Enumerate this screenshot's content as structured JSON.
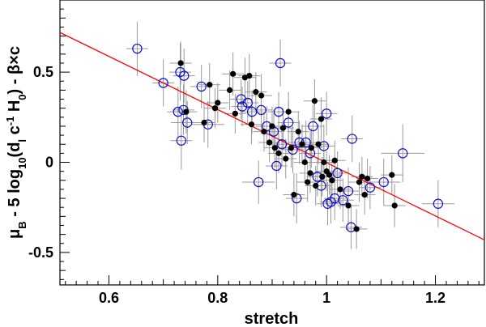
{
  "chart_data": {
    "type": "scatter",
    "xlabel": "stretch",
    "ylabel": "μB - 5 log10(dl c-1 H0) - β×c",
    "ylabel_parts": {
      "mu": "μ",
      "sub_b": "B",
      "mid": " - 5 log",
      "sub_10": "10",
      "open": "(d",
      "sub_l": "l",
      "c": " c",
      "sup_neg1": "-1",
      "h": " H",
      "sub_0": "0",
      "tail": ") - β×c"
    },
    "xlim": [
      0.51,
      1.29
    ],
    "ylim": [
      -0.68,
      0.9
    ],
    "xticks": [
      0.6,
      0.8,
      1.0,
      1.2
    ],
    "xtick_labels": [
      "0.6",
      "0.8",
      "1",
      "1.2"
    ],
    "yticks": [
      -0.5,
      0,
      0.5
    ],
    "ytick_labels": [
      "-0.5",
      "0",
      "0.5"
    ],
    "grid": false,
    "colors": {
      "open_marker": "#1010d0",
      "filled_marker": "#000000",
      "error_bar": "#999999",
      "fit_line": "#ff0000"
    },
    "fit_line": {
      "x": [
        0.51,
        1.29
      ],
      "y": [
        0.72,
        -0.43
      ]
    },
    "series": [
      {
        "marker": "open-circle",
        "points": [
          {
            "x": 0.652,
            "y": 0.63,
            "ex": 0.02,
            "ey": 0.15
          },
          {
            "x": 0.7,
            "y": 0.44,
            "ex": 0.02,
            "ey": 0.13
          },
          {
            "x": 0.727,
            "y": 0.28,
            "ex": 0.02,
            "ey": 0.14
          },
          {
            "x": 0.731,
            "y": 0.5,
            "ex": 0.02,
            "ey": 0.16
          },
          {
            "x": 0.737,
            "y": 0.29,
            "ex": 0.02,
            "ey": 0.14
          },
          {
            "x": 0.738,
            "y": 0.48,
            "ex": 0.02,
            "ey": 0.15
          },
          {
            "x": 0.733,
            "y": 0.12,
            "ex": 0.02,
            "ey": 0.16
          },
          {
            "x": 0.744,
            "y": 0.22,
            "ex": 0.03,
            "ey": 0.12
          },
          {
            "x": 0.77,
            "y": 0.42,
            "ex": 0.02,
            "ey": 0.12
          },
          {
            "x": 0.782,
            "y": 0.21,
            "ex": 0.03,
            "ey": 0.13
          },
          {
            "x": 0.843,
            "y": 0.35,
            "ex": 0.02,
            "ey": 0.11
          },
          {
            "x": 0.845,
            "y": 0.31,
            "ex": 0.02,
            "ey": 0.11
          },
          {
            "x": 0.855,
            "y": 0.33,
            "ex": 0.02,
            "ey": 0.12
          },
          {
            "x": 0.863,
            "y": 0.28,
            "ex": 0.02,
            "ey": 0.12
          },
          {
            "x": 0.875,
            "y": -0.11,
            "ex": 0.03,
            "ey": 0.12
          },
          {
            "x": 0.88,
            "y": 0.29,
            "ex": 0.02,
            "ey": 0.13
          },
          {
            "x": 0.89,
            "y": 0.2,
            "ex": 0.02,
            "ey": 0.11
          },
          {
            "x": 0.903,
            "y": 0.17,
            "ex": 0.02,
            "ey": 0.12
          },
          {
            "x": 0.908,
            "y": -0.02,
            "ex": 0.02,
            "ey": 0.13
          },
          {
            "x": 0.912,
            "y": 0.28,
            "ex": 0.02,
            "ey": 0.11
          },
          {
            "x": 0.915,
            "y": 0.55,
            "ex": 0.02,
            "ey": 0.13
          },
          {
            "x": 0.918,
            "y": 0.1,
            "ex": 0.02,
            "ey": 0.12
          },
          {
            "x": 0.93,
            "y": 0.22,
            "ex": 0.02,
            "ey": 0.12
          },
          {
            "x": 0.938,
            "y": 0.07,
            "ex": 0.02,
            "ey": 0.13
          },
          {
            "x": 0.945,
            "y": -0.2,
            "ex": 0.02,
            "ey": 0.14
          },
          {
            "x": 0.95,
            "y": 0.11,
            "ex": 0.02,
            "ey": 0.12
          },
          {
            "x": 0.962,
            "y": 0.11,
            "ex": 0.02,
            "ey": 0.12
          },
          {
            "x": 0.97,
            "y": 0.05,
            "ex": 0.02,
            "ey": 0.12
          },
          {
            "x": 0.975,
            "y": 0.2,
            "ex": 0.02,
            "ey": 0.12
          },
          {
            "x": 0.983,
            "y": -0.08,
            "ex": 0.02,
            "ey": 0.11
          },
          {
            "x": 0.99,
            "y": -0.13,
            "ex": 0.02,
            "ey": 0.12
          },
          {
            "x": 0.995,
            "y": 0.09,
            "ex": 0.02,
            "ey": 0.12
          },
          {
            "x": 1.0,
            "y": 0.27,
            "ex": 0.02,
            "ey": 0.12
          },
          {
            "x": 1.002,
            "y": -0.23,
            "ex": 0.02,
            "ey": 0.12
          },
          {
            "x": 1.008,
            "y": -0.22,
            "ex": 0.02,
            "ey": 0.12
          },
          {
            "x": 1.015,
            "y": -0.2,
            "ex": 0.02,
            "ey": 0.12
          },
          {
            "x": 1.02,
            "y": -0.06,
            "ex": 0.02,
            "ey": 0.12
          },
          {
            "x": 1.03,
            "y": -0.21,
            "ex": 0.02,
            "ey": 0.12
          },
          {
            "x": 1.04,
            "y": -0.16,
            "ex": 0.02,
            "ey": 0.13
          },
          {
            "x": 1.045,
            "y": -0.36,
            "ex": 0.02,
            "ey": 0.12
          },
          {
            "x": 1.047,
            "y": 0.13,
            "ex": 0.02,
            "ey": 0.13
          },
          {
            "x": 1.08,
            "y": -0.14,
            "ex": 0.02,
            "ey": 0.12
          },
          {
            "x": 1.105,
            "y": -0.11,
            "ex": 0.03,
            "ey": 0.13
          },
          {
            "x": 1.14,
            "y": 0.05,
            "ex": 0.04,
            "ey": 0.16
          },
          {
            "x": 1.205,
            "y": -0.23,
            "ex": 0.03,
            "ey": 0.13
          }
        ]
      },
      {
        "marker": "filled-circle",
        "points": [
          {
            "x": 0.732,
            "y": 0.55,
            "ex": 0.02,
            "ey": 0.12
          },
          {
            "x": 0.742,
            "y": 0.28,
            "ex": 0.02,
            "ey": 0.12
          },
          {
            "x": 0.775,
            "y": 0.22,
            "ex": 0.02,
            "ey": 0.11
          },
          {
            "x": 0.785,
            "y": 0.43,
            "ex": 0.02,
            "ey": 0.12
          },
          {
            "x": 0.795,
            "y": 0.3,
            "ex": 0.02,
            "ey": 0.11
          },
          {
            "x": 0.8,
            "y": 0.33,
            "ex": 0.02,
            "ey": 0.11
          },
          {
            "x": 0.822,
            "y": 0.4,
            "ex": 0.02,
            "ey": 0.11
          },
          {
            "x": 0.828,
            "y": 0.49,
            "ex": 0.02,
            "ey": 0.12
          },
          {
            "x": 0.832,
            "y": 0.27,
            "ex": 0.02,
            "ey": 0.11
          },
          {
            "x": 0.85,
            "y": 0.47,
            "ex": 0.02,
            "ey": 0.11
          },
          {
            "x": 0.858,
            "y": 0.48,
            "ex": 0.02,
            "ey": 0.12
          },
          {
            "x": 0.862,
            "y": 0.21,
            "ex": 0.02,
            "ey": 0.11
          },
          {
            "x": 0.87,
            "y": 0.39,
            "ex": 0.02,
            "ey": 0.11
          },
          {
            "x": 0.88,
            "y": 0.37,
            "ex": 0.02,
            "ey": 0.12
          },
          {
            "x": 0.885,
            "y": 0.17,
            "ex": 0.02,
            "ey": 0.11
          },
          {
            "x": 0.895,
            "y": 0.11,
            "ex": 0.02,
            "ey": 0.11
          },
          {
            "x": 0.9,
            "y": 0.2,
            "ex": 0.02,
            "ey": 0.11
          },
          {
            "x": 0.905,
            "y": 0.08,
            "ex": 0.02,
            "ey": 0.11
          },
          {
            "x": 0.912,
            "y": 0.05,
            "ex": 0.02,
            "ey": 0.11
          },
          {
            "x": 0.92,
            "y": 0.19,
            "ex": 0.02,
            "ey": 0.11
          },
          {
            "x": 0.925,
            "y": 0.02,
            "ex": 0.02,
            "ey": 0.11
          },
          {
            "x": 0.93,
            "y": 0.28,
            "ex": 0.02,
            "ey": 0.11
          },
          {
            "x": 0.935,
            "y": 0.08,
            "ex": 0.02,
            "ey": 0.11
          },
          {
            "x": 0.94,
            "y": -0.18,
            "ex": 0.02,
            "ey": 0.12
          },
          {
            "x": 0.948,
            "y": 0.17,
            "ex": 0.02,
            "ey": 0.11
          },
          {
            "x": 0.955,
            "y": 0.1,
            "ex": 0.02,
            "ey": 0.11
          },
          {
            "x": 0.96,
            "y": 0.0,
            "ex": 0.02,
            "ey": 0.11
          },
          {
            "x": 0.965,
            "y": -0.11,
            "ex": 0.02,
            "ey": 0.11
          },
          {
            "x": 0.97,
            "y": -0.06,
            "ex": 0.02,
            "ey": 0.11
          },
          {
            "x": 0.972,
            "y": 0.08,
            "ex": 0.02,
            "ey": 0.11
          },
          {
            "x": 0.978,
            "y": 0.34,
            "ex": 0.02,
            "ey": 0.12
          },
          {
            "x": 0.98,
            "y": -0.13,
            "ex": 0.02,
            "ey": 0.11
          },
          {
            "x": 0.985,
            "y": 0.1,
            "ex": 0.02,
            "ey": 0.11
          },
          {
            "x": 0.99,
            "y": 0.24,
            "ex": 0.02,
            "ey": 0.12
          },
          {
            "x": 0.992,
            "y": -0.08,
            "ex": 0.02,
            "ey": 0.11
          },
          {
            "x": 0.995,
            "y": 0.0,
            "ex": 0.02,
            "ey": 0.11
          },
          {
            "x": 1.0,
            "y": -0.05,
            "ex": 0.02,
            "ey": 0.11
          },
          {
            "x": 1.005,
            "y": -0.07,
            "ex": 0.02,
            "ey": 0.11
          },
          {
            "x": 1.01,
            "y": -0.1,
            "ex": 0.02,
            "ey": 0.11
          },
          {
            "x": 1.015,
            "y": 0.01,
            "ex": 0.02,
            "ey": 0.11
          },
          {
            "x": 1.025,
            "y": -0.15,
            "ex": 0.02,
            "ey": 0.11
          },
          {
            "x": 1.04,
            "y": -0.24,
            "ex": 0.02,
            "ey": 0.11
          },
          {
            "x": 1.055,
            "y": -0.37,
            "ex": 0.02,
            "ey": 0.11
          },
          {
            "x": 1.06,
            "y": -0.11,
            "ex": 0.02,
            "ey": 0.11
          },
          {
            "x": 1.065,
            "y": -0.08,
            "ex": 0.02,
            "ey": 0.11
          },
          {
            "x": 1.07,
            "y": -0.18,
            "ex": 0.02,
            "ey": 0.11
          },
          {
            "x": 1.075,
            "y": -0.09,
            "ex": 0.02,
            "ey": 0.11
          },
          {
            "x": 1.12,
            "y": -0.07,
            "ex": 0.02,
            "ey": 0.11
          },
          {
            "x": 1.125,
            "y": -0.24,
            "ex": 0.02,
            "ey": 0.12
          }
        ]
      }
    ]
  }
}
